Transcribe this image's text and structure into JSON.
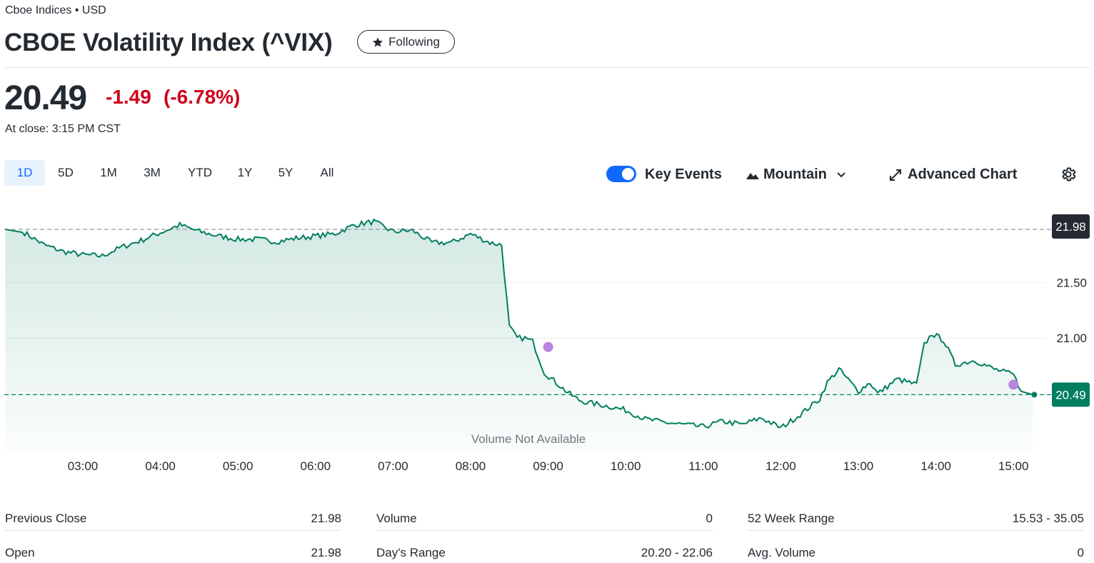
{
  "header": {
    "exchange": "Cboe Indices • USD",
    "title": "CBOE Volatility Index (^VIX)",
    "follow_label": "Following"
  },
  "quote": {
    "price": "20.49",
    "change": "-1.49",
    "change_pct": "(-6.78%)",
    "close_time": "At close: 3:15 PM CST",
    "change_color": "#d0021b"
  },
  "range_tabs": [
    {
      "label": "1D",
      "active": true
    },
    {
      "label": "5D"
    },
    {
      "label": "1M"
    },
    {
      "label": "3M"
    },
    {
      "label": "YTD"
    },
    {
      "label": "1Y"
    },
    {
      "label": "5Y"
    },
    {
      "label": "All"
    }
  ],
  "controls": {
    "key_events_label": "Key Events",
    "key_events_on": true,
    "chart_type_label": "Mountain",
    "advanced_chart_label": "Advanced Chart"
  },
  "chart_data": {
    "type": "area",
    "x_ticks": [
      "03:00",
      "04:00",
      "05:00",
      "06:00",
      "07:00",
      "08:00",
      "09:00",
      "10:00",
      "11:00",
      "12:00",
      "13:00",
      "14:00",
      "15:00"
    ],
    "y_ticks": [
      "21.50",
      "21.00"
    ],
    "ylim": [
      19.99,
      22.18
    ],
    "previous_close": 21.98,
    "previous_close_label": "21.98",
    "last_price": 20.49,
    "last_price_label": "20.49",
    "volume_note": "Volume Not Available",
    "line_color": "#027e5f",
    "series_hours": [
      2.0,
      2.25,
      2.5,
      2.75,
      3.0,
      3.25,
      3.5,
      3.75,
      4.0,
      4.25,
      4.5,
      4.75,
      5.0,
      5.25,
      5.5,
      5.75,
      6.0,
      6.25,
      6.5,
      6.75,
      7.0,
      7.25,
      7.5,
      7.75,
      8.0,
      8.25,
      8.4,
      8.5,
      8.6,
      8.7,
      8.8,
      8.95,
      9.1,
      9.25,
      9.4,
      9.5,
      9.75,
      10.0,
      10.25,
      10.5,
      10.75,
      11.0,
      11.25,
      11.5,
      11.75,
      12.0,
      12.25,
      12.5,
      12.6,
      12.75,
      12.9,
      13.0,
      13.15,
      13.25,
      13.5,
      13.75,
      13.85,
      13.95,
      14.1,
      14.25,
      14.5,
      14.75,
      15.0,
      15.1,
      15.25
    ],
    "series_values": [
      21.98,
      21.95,
      21.84,
      21.78,
      21.75,
      21.74,
      21.82,
      21.88,
      21.95,
      22.02,
      21.96,
      21.92,
      21.89,
      21.89,
      21.87,
      21.9,
      21.92,
      21.94,
      22.02,
      22.05,
      21.96,
      21.97,
      21.86,
      21.86,
      21.94,
      21.86,
      21.84,
      21.1,
      21.0,
      21.0,
      20.97,
      20.69,
      20.6,
      20.51,
      20.44,
      20.42,
      20.39,
      20.35,
      20.27,
      20.24,
      20.22,
      20.2,
      20.25,
      20.22,
      20.28,
      20.19,
      20.31,
      20.45,
      20.6,
      20.72,
      20.6,
      20.52,
      20.6,
      20.5,
      20.63,
      20.58,
      20.94,
      21.04,
      20.98,
      20.76,
      20.8,
      20.72,
      20.67,
      20.52,
      20.49
    ],
    "events_hours": [
      9.0,
      15.0
    ],
    "events_values": [
      20.92,
      20.58
    ],
    "event_color": "#b784de"
  },
  "stats": [
    [
      {
        "label": "Previous Close",
        "value": "21.98"
      },
      {
        "label": "Volume",
        "value": "0"
      },
      {
        "label": "52 Week Range",
        "value": "15.53 - 35.05"
      }
    ],
    [
      {
        "label": "Open",
        "value": "21.98"
      },
      {
        "label": "Day's Range",
        "value": "20.20 - 22.06"
      },
      {
        "label": "Avg. Volume",
        "value": "0"
      }
    ]
  ]
}
